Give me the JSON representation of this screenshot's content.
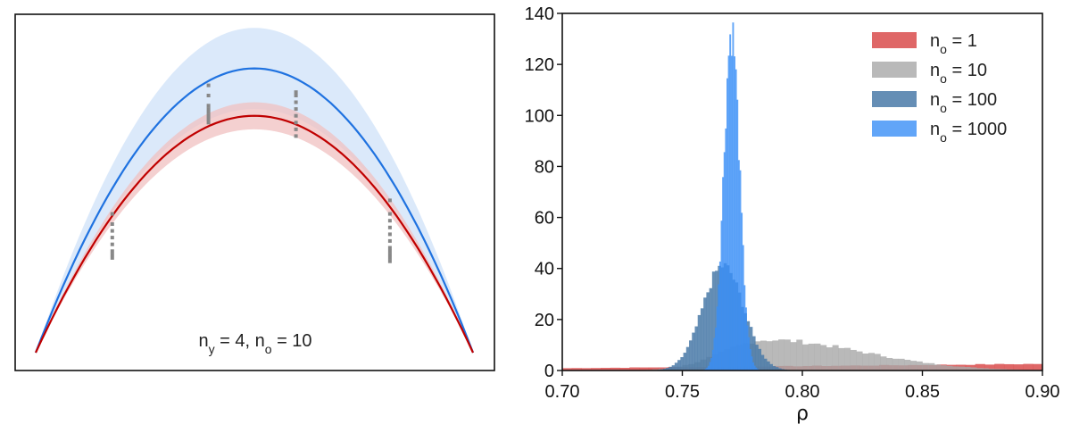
{
  "chart_data": [
    {
      "type": "line",
      "annotation": {
        "text": "n",
        "sub_y": "y",
        "eq1": " = 4, n",
        "sub_o": "o",
        "eq2": " = 10"
      },
      "xlim": [
        0,
        1
      ],
      "ylim": [
        0,
        1
      ],
      "grid": false,
      "colors": {
        "blue": "#1f72e0",
        "blue_band": "#cfe2f8",
        "red": "#c00000",
        "red_band": "#f0c0c0",
        "points": "#888888"
      },
      "series": [
        {
          "key": "blue",
          "peak": 0.84,
          "band_upper_peak": 0.96,
          "band_lower_peak": 0.72
        },
        {
          "key": "red",
          "peak": 0.7,
          "band_upper_peak": 0.74,
          "band_lower_peak": 0.66
        }
      ],
      "point_groups": [
        {
          "x": 0.175,
          "ys": [
            0.41,
            0.38,
            0.36,
            0.34,
            0.32,
            0.3,
            0.29,
            0.28
          ]
        },
        {
          "x": 0.395,
          "ys": [
            0.79,
            0.76,
            0.73,
            0.72,
            0.71,
            0.7,
            0.69,
            0.68
          ]
        },
        {
          "x": 0.595,
          "ys": [
            0.77,
            0.76,
            0.74,
            0.72,
            0.7,
            0.68,
            0.66,
            0.64
          ]
        },
        {
          "x": 0.81,
          "ys": [
            0.45,
            0.41,
            0.39,
            0.37,
            0.35,
            0.33,
            0.31,
            0.3,
            0.29,
            0.28,
            0.27
          ]
        }
      ]
    },
    {
      "type": "histogram",
      "xlabel": "ρ",
      "ylabel": "",
      "xlim": [
        0.7,
        0.9
      ],
      "ylim": [
        0,
        140
      ],
      "xticks": [
        "0.70",
        "0.75",
        "0.80",
        "0.85",
        "0.90"
      ],
      "xtick_values": [
        0.7,
        0.75,
        0.8,
        0.85,
        0.9
      ],
      "yticks": [
        "0",
        "20",
        "40",
        "60",
        "80",
        "100",
        "120",
        "140"
      ],
      "ytick_values": [
        0,
        20,
        40,
        60,
        80,
        100,
        120,
        140
      ],
      "legend_position": "top-right",
      "series": [
        {
          "name_main": "n",
          "name_sub": "o",
          "name_rest": " = 1",
          "color": "#d94c4c",
          "opacity": 0.85,
          "mode": "uniform-ish",
          "center": 0.8,
          "width": 0.12,
          "peak": 2.6
        },
        {
          "name_main": "n",
          "name_sub": "o",
          "name_rest": " = 10",
          "color": "#a8a8a8",
          "opacity": 0.8,
          "mode": "skewed",
          "center": 0.785,
          "peak": 12
        },
        {
          "name_main": "n",
          "name_sub": "o",
          "name_rest": " = 100",
          "color": "#4a7aa8",
          "opacity": 0.85,
          "mode": "normal",
          "center": 0.767,
          "sigma": 0.0085,
          "peak": 41
        },
        {
          "name_main": "n",
          "name_sub": "o",
          "name_rest": " = 1000",
          "color": "#3a8ef6",
          "opacity": 0.8,
          "mode": "normal",
          "center": 0.7705,
          "sigma": 0.0033,
          "peak": 133
        }
      ]
    }
  ]
}
